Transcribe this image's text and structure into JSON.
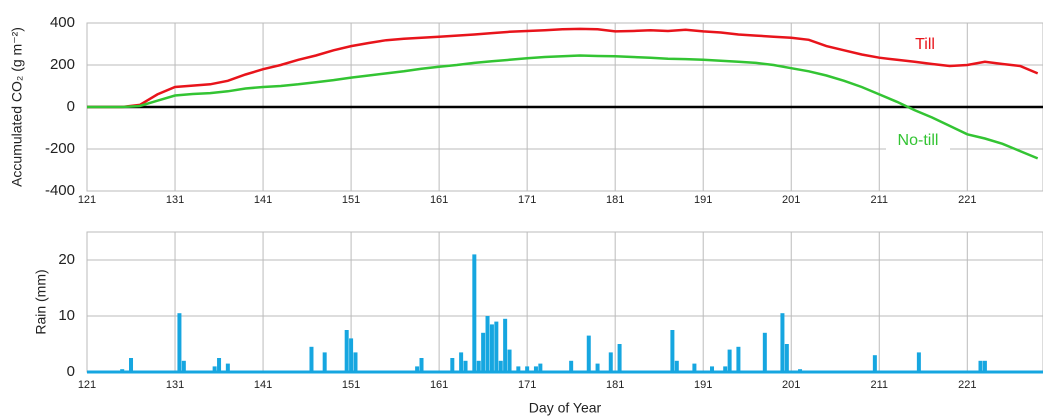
{
  "chart_data": [
    {
      "type": "line",
      "ylabel": "Accumulated CO₂ (g m⁻²)",
      "x": [
        121,
        123,
        125,
        127,
        129,
        131,
        133,
        135,
        137,
        139,
        141,
        143,
        145,
        147,
        149,
        151,
        153,
        155,
        157,
        159,
        161,
        163,
        165,
        167,
        169,
        171,
        173,
        175,
        177,
        179,
        181,
        183,
        185,
        187,
        189,
        191,
        193,
        195,
        197,
        199,
        201,
        203,
        205,
        207,
        209,
        211,
        213,
        215,
        217,
        219,
        221,
        223,
        225,
        227,
        229
      ],
      "series": [
        {
          "name": "Till",
          "color": "#e8141b",
          "values": [
            0,
            0,
            0,
            10,
            60,
            95,
            102,
            108,
            125,
            155,
            180,
            200,
            225,
            245,
            270,
            290,
            305,
            318,
            325,
            330,
            335,
            340,
            345,
            352,
            358,
            362,
            365,
            370,
            372,
            370,
            360,
            362,
            365,
            362,
            368,
            360,
            355,
            345,
            340,
            335,
            330,
            320,
            290,
            270,
            250,
            235,
            225,
            215,
            205,
            195,
            200,
            215,
            205,
            195,
            160
          ]
        },
        {
          "name": "No-till",
          "color": "#33c433",
          "values": [
            0,
            0,
            0,
            5,
            30,
            55,
            62,
            66,
            75,
            88,
            95,
            100,
            108,
            118,
            128,
            140,
            150,
            160,
            170,
            182,
            192,
            200,
            210,
            218,
            225,
            232,
            238,
            242,
            245,
            243,
            242,
            238,
            235,
            230,
            228,
            225,
            220,
            215,
            210,
            200,
            185,
            170,
            150,
            125,
            95,
            60,
            25,
            -15,
            -50,
            -90,
            -130,
            -150,
            -175,
            -210,
            -245
          ]
        }
      ],
      "xlim": [
        121,
        229.6
      ],
      "xticks": [
        121,
        131,
        141,
        151,
        161,
        171,
        181,
        191,
        201,
        211,
        221
      ],
      "ylim": [
        -400,
        400
      ],
      "yticks": [
        -400,
        -200,
        0,
        200,
        400
      ],
      "grid": true
    },
    {
      "type": "bar",
      "ylabel": "Rain  (mm)",
      "xlabel": "Day of Year",
      "color": "#16a6e0",
      "x": [
        125,
        126,
        131.5,
        132,
        135.5,
        136,
        137,
        146.5,
        148,
        150.5,
        151,
        151.5,
        158.5,
        159,
        162.5,
        163.5,
        164,
        165,
        165.5,
        166,
        166.5,
        167,
        167.5,
        168,
        168.5,
        169,
        170,
        171,
        172,
        172.5,
        176,
        178,
        179,
        180.5,
        181.5,
        187.5,
        188,
        190,
        192,
        193.5,
        194,
        195,
        198,
        200,
        200.5,
        202,
        210.5,
        215.5,
        222.5,
        223
      ],
      "values": [
        0.5,
        2.5,
        10.5,
        2,
        1,
        2.5,
        1.5,
        4.5,
        3.5,
        7.5,
        6,
        3.5,
        1,
        2.5,
        2.5,
        3.5,
        2,
        21,
        2,
        7,
        10,
        8.5,
        9,
        2,
        9.5,
        4,
        1,
        1,
        1,
        1.5,
        2,
        6.5,
        1.5,
        3.5,
        5,
        7.5,
        2,
        1.5,
        1,
        1,
        4,
        4.5,
        7,
        10.5,
        5,
        0.5,
        3,
        3.5,
        2,
        2
      ],
      "xlim": [
        121,
        229.6
      ],
      "xticks": [
        121,
        131,
        141,
        151,
        161,
        171,
        181,
        191,
        201,
        211,
        221
      ],
      "ylim": [
        0,
        25
      ],
      "yticks": [
        0,
        10,
        20
      ],
      "grid": true
    }
  ]
}
